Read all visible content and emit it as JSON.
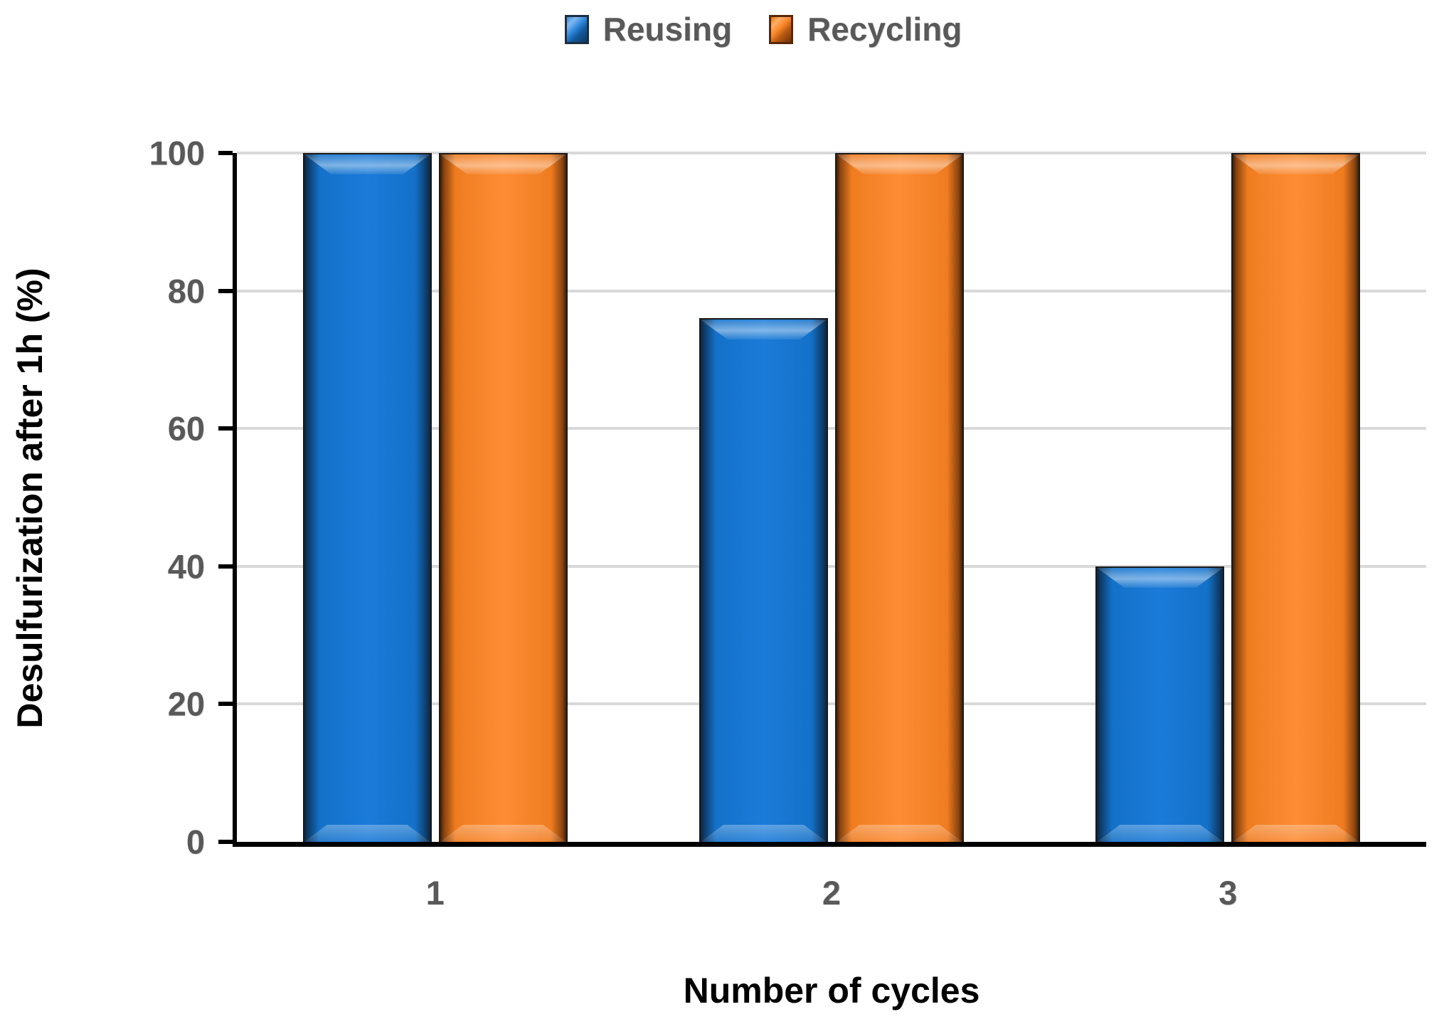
{
  "chart_data": {
    "type": "bar",
    "categories": [
      "1",
      "2",
      "3"
    ],
    "series": [
      {
        "name": "Reusing",
        "color": "#1474CE",
        "values": [
          100,
          76,
          40
        ]
      },
      {
        "name": "Recycling",
        "color": "#FB8328",
        "values": [
          100,
          100,
          100
        ]
      }
    ],
    "xlabel": "Number of cycles",
    "ylabel": "Desulfurization after 1h (%)",
    "ylim": [
      0,
      100
    ],
    "yticks": [
      0,
      20,
      40,
      60,
      80,
      100
    ],
    "grid": true,
    "legend_position": "top-center"
  },
  "colors": {
    "reusing_bar": "#1474CE",
    "recycling_bar": "#FB8328",
    "gridline": "#D9D9D9",
    "axis_line": "#000000",
    "tick_label_text": "#595959",
    "legend_text": "#595959",
    "axis_title_text": "#000000"
  }
}
